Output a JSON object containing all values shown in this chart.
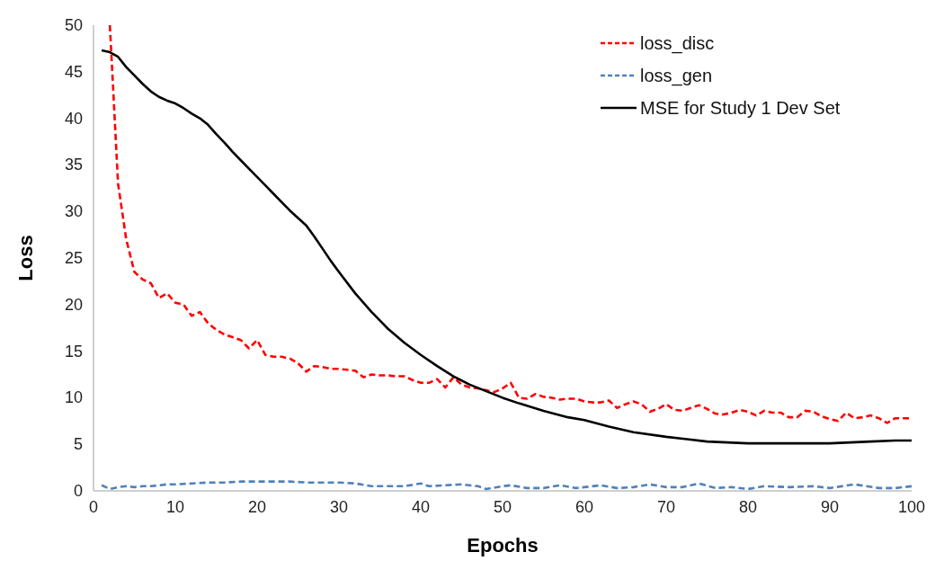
{
  "chart_data": {
    "type": "line",
    "xlabel": "Epochs",
    "ylabel": "Loss",
    "xlim": [
      0,
      100
    ],
    "xticks": [
      0,
      10,
      20,
      30,
      40,
      50,
      60,
      70,
      80,
      90,
      100
    ],
    "ylim": [
      0,
      50
    ],
    "yticks": [
      0,
      5,
      10,
      15,
      20,
      25,
      30,
      35,
      40,
      45,
      50
    ],
    "grid": false,
    "legend": "top right",
    "series": [
      {
        "name": "loss_disc",
        "color": "#ff0000",
        "line_style": "dashed",
        "x": [
          2,
          3,
          4,
          5,
          6,
          7,
          8,
          9,
          10,
          11,
          12,
          13,
          14,
          15,
          16,
          17,
          18,
          19,
          20,
          21,
          22,
          23,
          24,
          25,
          26,
          27,
          28,
          29,
          30,
          31,
          32,
          33,
          34,
          35,
          36,
          37,
          38,
          39,
          40,
          41,
          42,
          43,
          44,
          45,
          46,
          47,
          48,
          49,
          50,
          51,
          52,
          53,
          54,
          55,
          56,
          57,
          58,
          59,
          60,
          61,
          62,
          63,
          64,
          65,
          66,
          67,
          68,
          69,
          70,
          71,
          72,
          73,
          74,
          75,
          76,
          77,
          78,
          79,
          80,
          81,
          82,
          83,
          84,
          85,
          86,
          87,
          88,
          89,
          90,
          91,
          92,
          93,
          94,
          95,
          96,
          97,
          98,
          99,
          100
        ],
        "values": [
          50,
          33,
          27,
          23.5,
          22.7,
          22.3,
          20.7,
          21.2,
          20.2,
          20,
          18.8,
          19.2,
          18,
          17.3,
          16.8,
          16.5,
          16.2,
          15.3,
          16.2,
          14.6,
          14.4,
          14.4,
          14.2,
          13.7,
          12.8,
          13.4,
          13.3,
          13.1,
          13.1,
          13,
          12.9,
          12.2,
          12.5,
          12.4,
          12.4,
          12.3,
          12.3,
          11.9,
          11.6,
          11.6,
          12,
          11.1,
          12.2,
          11.4,
          11.1,
          11,
          10.8,
          10.6,
          11,
          11.6,
          10,
          9.9,
          10.4,
          10.1,
          10,
          9.8,
          9.9,
          9.9,
          9.6,
          9.5,
          9.5,
          9.7,
          8.9,
          9.3,
          9.6,
          9.3,
          8.5,
          8.8,
          9.3,
          8.7,
          8.6,
          8.9,
          9.2,
          8.8,
          8.3,
          8.2,
          8.4,
          8.7,
          8.5,
          8.1,
          8.6,
          8.4,
          8.4,
          7.9,
          7.9,
          8.6,
          8.5,
          8,
          7.7,
          7.5,
          8.4,
          7.8,
          7.9,
          8.1,
          7.8,
          7.3,
          7.8,
          7.8,
          7.8
        ]
      },
      {
        "name": "loss_gen",
        "color": "#4f81bd",
        "line_style": "dashed",
        "x": [
          1,
          2,
          3,
          4,
          5,
          6,
          7,
          8,
          9,
          10,
          12,
          14,
          16,
          18,
          20,
          22,
          24,
          26,
          28,
          30,
          32,
          34,
          36,
          38,
          40,
          41,
          43,
          45,
          47,
          48,
          50,
          51,
          53,
          55,
          57,
          59,
          62,
          64,
          66,
          68,
          70,
          72,
          74,
          76,
          78,
          80,
          82,
          85,
          88,
          90,
          93,
          96,
          98,
          100
        ],
        "values": [
          0.6,
          0.2,
          0.4,
          0.5,
          0.4,
          0.5,
          0.5,
          0.6,
          0.7,
          0.7,
          0.8,
          0.9,
          0.9,
          1,
          1,
          1,
          1,
          0.9,
          0.9,
          0.9,
          0.8,
          0.5,
          0.5,
          0.5,
          0.8,
          0.5,
          0.6,
          0.7,
          0.5,
          0.2,
          0.5,
          0.6,
          0.3,
          0.3,
          0.6,
          0.3,
          0.6,
          0.3,
          0.4,
          0.7,
          0.4,
          0.4,
          0.8,
          0.3,
          0.4,
          0.2,
          0.5,
          0.4,
          0.5,
          0.3,
          0.7,
          0.3,
          0.3,
          0.5
        ]
      },
      {
        "name": "MSE for Study 1 Dev Set",
        "color": "#000000",
        "line_style": "solid",
        "x": [
          1,
          2,
          3,
          4,
          5,
          6,
          7,
          8,
          9,
          10,
          11,
          12,
          13,
          14,
          15,
          16,
          17,
          18,
          19,
          20,
          21,
          22,
          23,
          24,
          25,
          26,
          27,
          28,
          29,
          30,
          32,
          34,
          36,
          38,
          40,
          42,
          44,
          46,
          48,
          50,
          52,
          55,
          58,
          60,
          63,
          66,
          70,
          75,
          80,
          85,
          90,
          95,
          98,
          100
        ],
        "values": [
          47.3,
          47.1,
          46.6,
          45.5,
          44.6,
          43.7,
          42.9,
          42.3,
          41.9,
          41.6,
          41.1,
          40.5,
          40,
          39.3,
          38.3,
          37.4,
          36.4,
          35.5,
          34.6,
          33.7,
          32.8,
          31.9,
          31,
          30.1,
          29.3,
          28.5,
          27.3,
          26,
          24.7,
          23.5,
          21.2,
          19.2,
          17.4,
          15.9,
          14.6,
          13.4,
          12.3,
          11.4,
          10.7,
          10,
          9.4,
          8.6,
          7.9,
          7.6,
          6.9,
          6.3,
          5.8,
          5.3,
          5.1,
          5.1,
          5.1,
          5.3,
          5.4,
          5.4
        ]
      }
    ]
  }
}
